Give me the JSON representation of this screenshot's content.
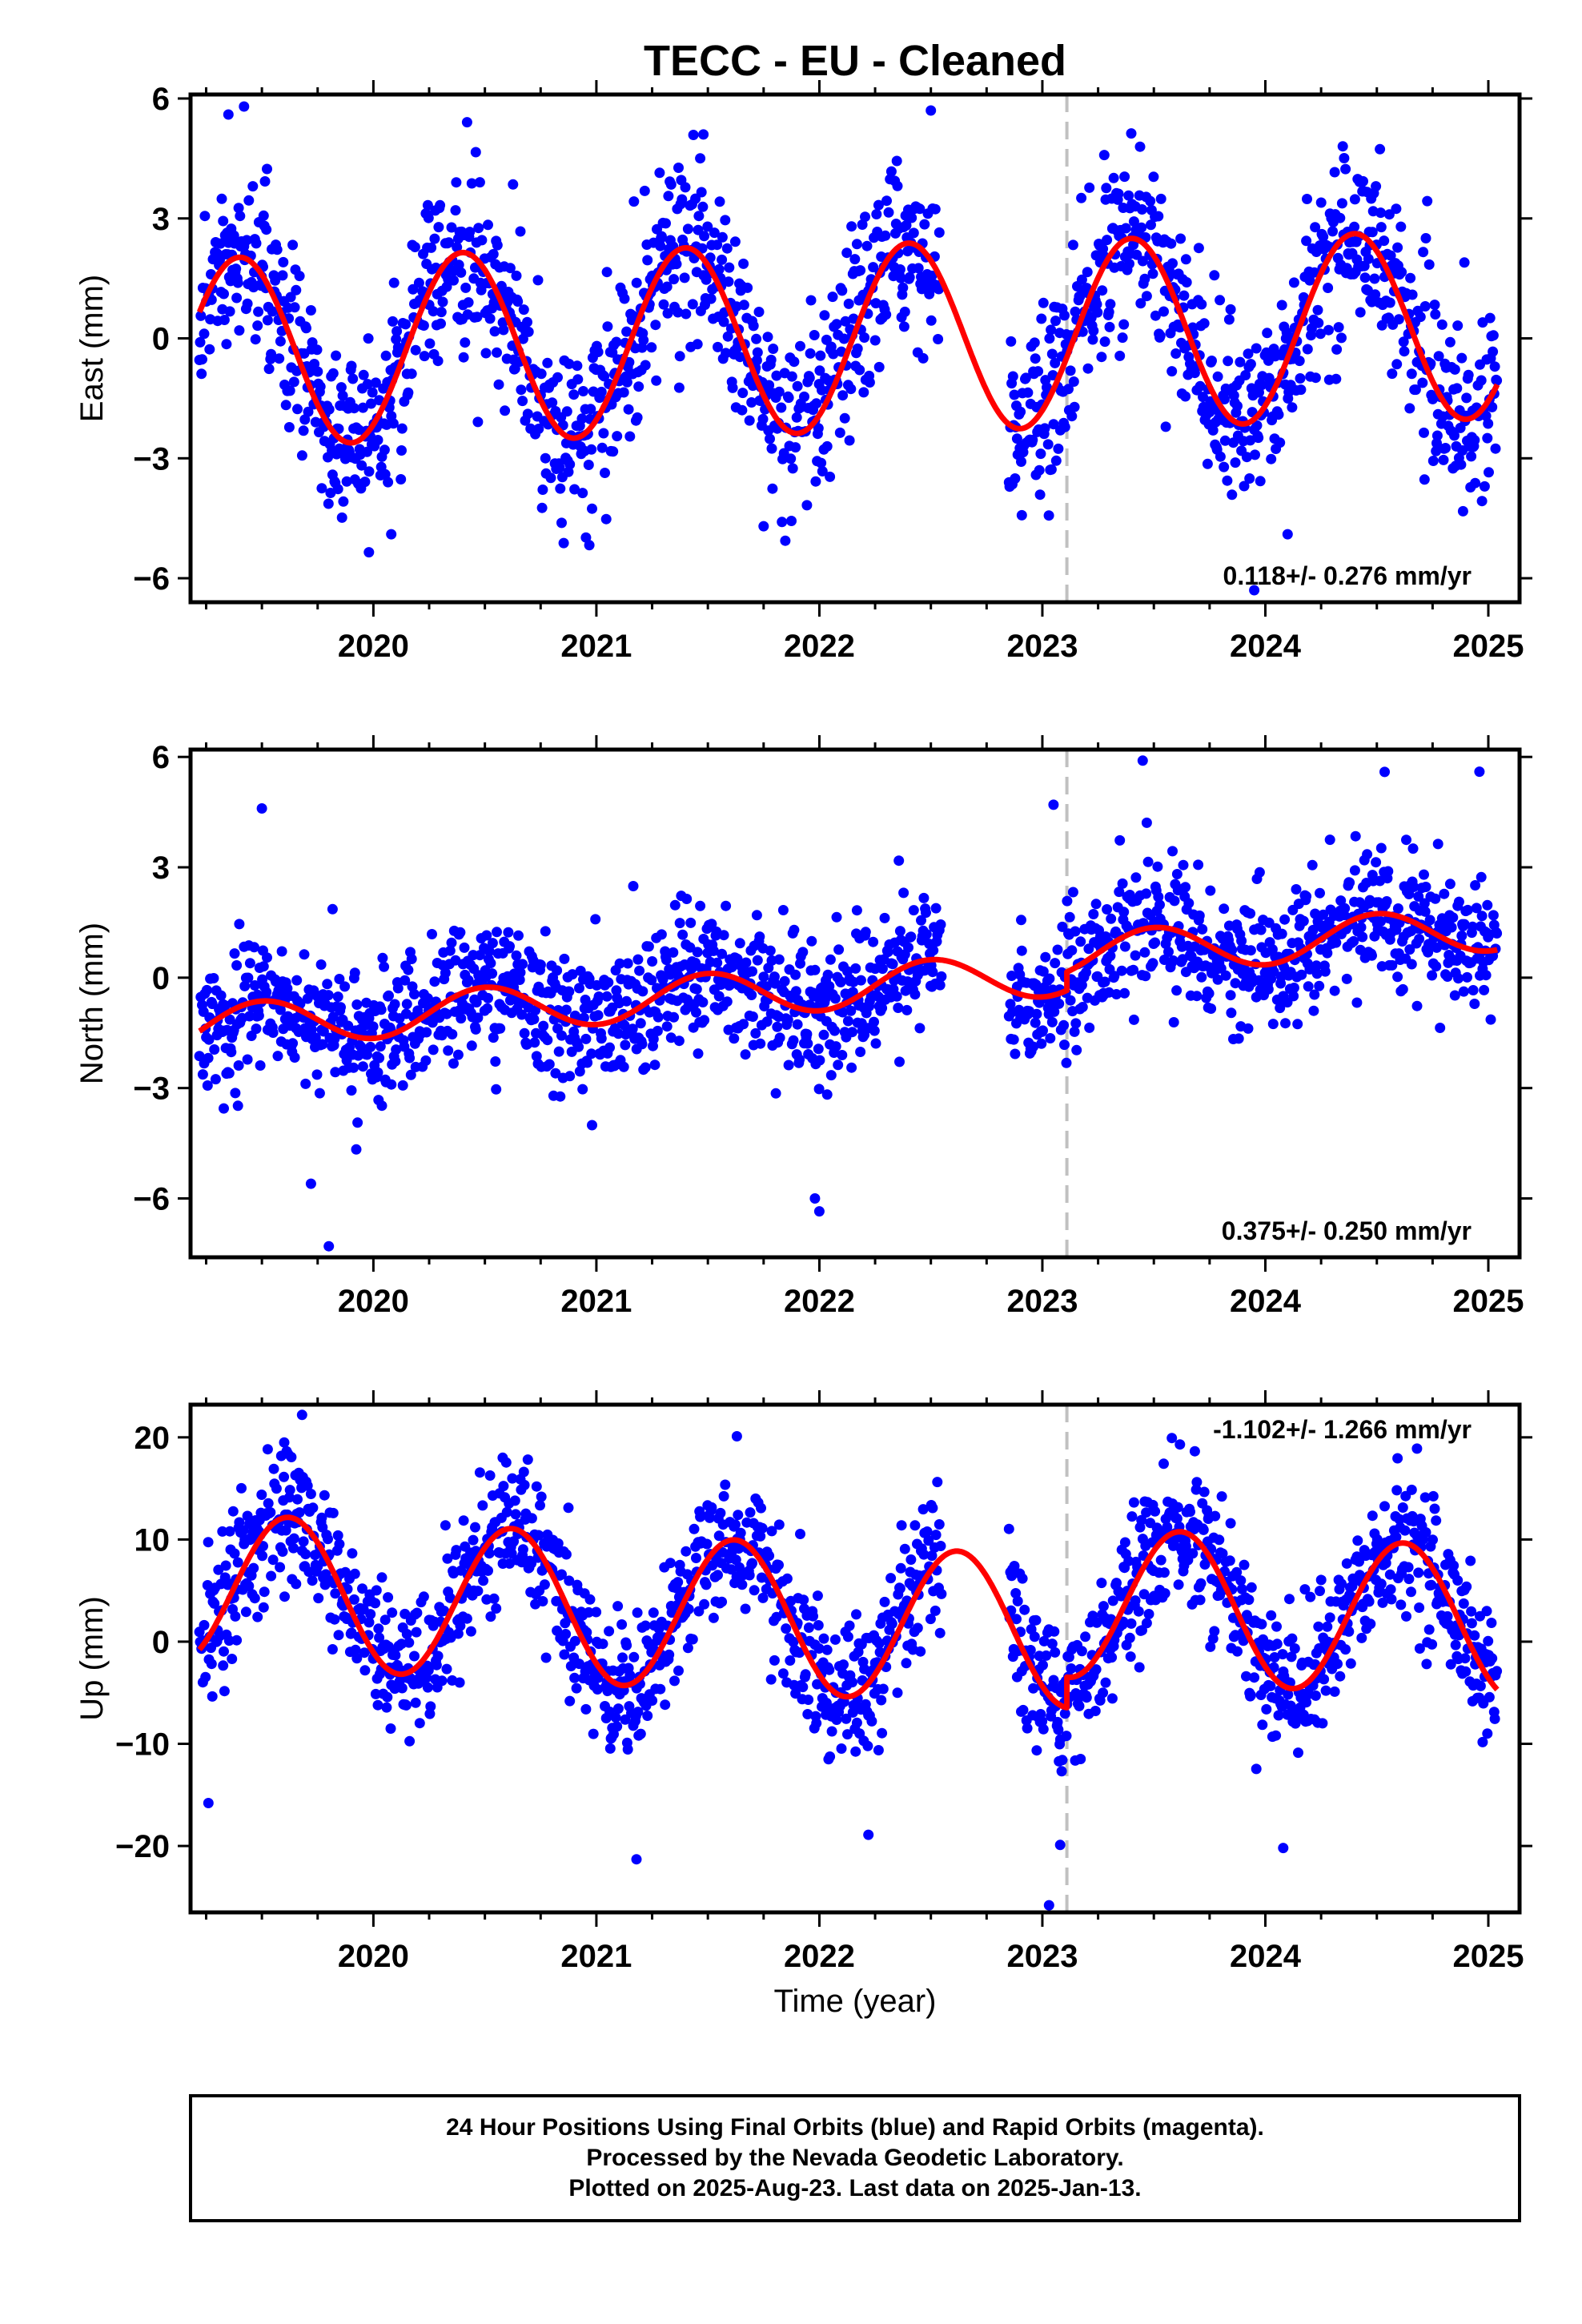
{
  "chart_data": {
    "type": "scatter",
    "title": "TECC  - EU - Cleaned",
    "xlabel": "Time (year)",
    "xlim": [
      2019.18,
      2025.14
    ],
    "xticks": [
      2020,
      2021,
      2022,
      2023,
      2024,
      2025
    ],
    "x_tick_labels": [
      "2020",
      "2021",
      "2022",
      "2023",
      "2024",
      "2025"
    ],
    "x_minor_step": 0.25,
    "offset_epoch": 2023.11,
    "data_start": 2019.22,
    "data_end": 2025.04,
    "series_colors": {
      "data": "#0000ff",
      "model": "#ff0000",
      "offset_line": "#c0c0c0"
    },
    "panels": [
      {
        "name": "east",
        "ylabel": "East (mm)",
        "ylim": [
          -6.6,
          6.1
        ],
        "yticks": [
          6,
          3,
          0,
          -3,
          -6
        ],
        "y_tick_labels": [
          "6",
          "3",
          "0",
          "−3",
          "−6"
        ],
        "rate_text": "0.118+/- 0.276 mm/yr",
        "rate_position": "bottom-right",
        "model": {
          "mean": 0.0,
          "amplitude": 2.35,
          "phase_peak": 0.4,
          "trend": 0.118,
          "ref_epoch": 2022.13,
          "offset": 0.0
        },
        "scatter": 1.1,
        "outliers": [
          [
            2019.42,
            5.8
          ],
          [
            2019.35,
            5.6
          ],
          [
            2021.48,
            5.1
          ],
          [
            2022.5,
            5.7
          ],
          [
            2019.98,
            -5.35
          ],
          [
            2020.08,
            -4.9
          ],
          [
            2021.75,
            -4.7
          ],
          [
            2023.95,
            -6.3
          ],
          [
            2024.1,
            -4.9
          ]
        ]
      },
      {
        "name": "north",
        "ylabel": "North (mm)",
        "ylim": [
          -7.6,
          6.2
        ],
        "yticks": [
          6,
          3,
          0,
          -3,
          -6
        ],
        "y_tick_labels": [
          "6",
          "3",
          "0",
          "−3",
          "−6"
        ],
        "rate_text": "0.375+/- 0.250 mm/yr",
        "rate_position": "bottom-right",
        "model": {
          "mean": -0.25,
          "amplitude": 0.6,
          "phase_peak": 0.5,
          "trend": 0.375,
          "ref_epoch": 2022.13,
          "offset": 0.5
        },
        "scatter": 0.9,
        "outliers": [
          [
            2019.5,
            4.6
          ],
          [
            2019.72,
            -5.6
          ],
          [
            2019.8,
            -7.3
          ],
          [
            2021.98,
            -6.0
          ],
          [
            2022.0,
            -6.35
          ],
          [
            2023.05,
            4.7
          ],
          [
            2023.45,
            5.9
          ],
          [
            2024.96,
            5.6
          ]
        ]
      },
      {
        "name": "up",
        "ylabel": "Up (mm)",
        "ylim": [
          -26.5,
          23.2
        ],
        "yticks": [
          20,
          10,
          0,
          -10,
          -20
        ],
        "y_tick_labels": [
          "20",
          "10",
          "0",
          "−10",
          "−20"
        ],
        "rate_text": "-1.102+/- 1.266 mm/yr",
        "rate_position": "top-right",
        "model": {
          "mean": 2.0,
          "amplitude": 7.4,
          "phase_peak": 0.62,
          "trend": -1.102,
          "ref_epoch": 2022.13,
          "offset": 3.0
        },
        "scatter": 3.4,
        "outliers": [
          [
            2019.6,
            19.5
          ],
          [
            2019.68,
            22.2
          ],
          [
            2020.58,
            18.0
          ],
          [
            2021.63,
            20.1
          ],
          [
            2019.26,
            -15.8
          ],
          [
            2021.18,
            -21.3
          ],
          [
            2022.22,
            -18.9
          ],
          [
            2023.03,
            -25.8
          ],
          [
            2023.08,
            -19.9
          ],
          [
            2024.08,
            -20.2
          ],
          [
            2024.68,
            18.9
          ]
        ]
      }
    ]
  },
  "footer": {
    "line1": "24 Hour Positions Using Final Orbits (blue) and Rapid Orbits (magenta).",
    "line2": "Processed by the Nevada Geodetic Laboratory.",
    "line3": "Plotted on 2025-Aug-23. Last data on 2025-Jan-13."
  }
}
